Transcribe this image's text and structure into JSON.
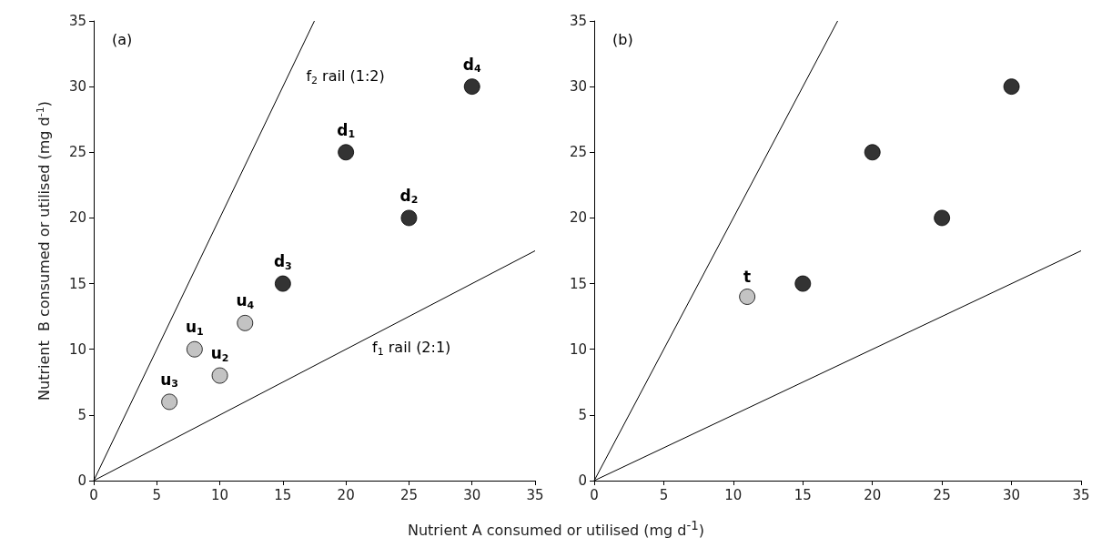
{
  "chart_data": [
    {
      "type": "scatter",
      "ylabel": "Nutrient  B consumed or utilised (mg d$^{-1}$)",
      "xlabel": "Nutrient  A consumed or utilised (mg d$^{-1}$)",
      "xlim": [
        0,
        35
      ],
      "ylim": [
        0,
        35
      ],
      "xticks": [
        0,
        5,
        10,
        15,
        20,
        25,
        30,
        35
      ],
      "yticks": [
        0,
        5,
        10,
        15,
        20,
        25,
        30,
        35
      ],
      "grid": false,
      "marker": "circle",
      "series": [
        {
          "type": "line",
          "name": "f$_{2}$ rail (1:2)",
          "color": "#000000",
          "x": [
            0,
            17.5
          ],
          "values": [
            0,
            35
          ],
          "marker": "none"
        },
        {
          "type": "line",
          "name": "f$_{1}$ rail (2:1)",
          "color": "#000000",
          "x": [
            0,
            35
          ],
          "values": [
            0,
            17.5
          ],
          "marker": "none"
        },
        {
          "color": "#b4b4b4",
          "x": [
            8,
            10,
            6,
            12
          ],
          "values": [
            10,
            8,
            6,
            12
          ]
        },
        {
          "color": "#000000",
          "x": [
            20,
            25,
            15,
            30
          ],
          "values": [
            25,
            20,
            15,
            30
          ]
        }
      ],
      "annotations": [
        "(a)",
        {
          "text": "u$_{1}$",
          "x": 8,
          "y": 10
        },
        {
          "text": "u$_{2}$",
          "x": 10,
          "y": 8
        },
        {
          "text": "u$_{3}$",
          "x": 6,
          "y": 6
        },
        {
          "text": "u$_{4}$",
          "x": 12,
          "y": 12
        },
        {
          "text": "d$_{1}$",
          "x": 20,
          "y": 25
        },
        {
          "text": "d$_{2}$",
          "x": 25,
          "y": 20
        },
        {
          "text": "d$_{3}$",
          "x": 15,
          "y": 15
        },
        {
          "text": "d$_{4}$",
          "x": 30,
          "y": 30
        }
      ]
    },
    {
      "type": "scatter",
      "xlim": [
        0,
        35
      ],
      "ylim": [
        0,
        35
      ],
      "xticks": [
        0,
        5,
        10,
        15,
        20,
        25,
        30,
        35
      ],
      "yticks": [
        0,
        5,
        10,
        15,
        20,
        25,
        30,
        35
      ],
      "grid": false,
      "marker": "circle",
      "series": [
        {
          "type": "line",
          "color": "#000000",
          "x": [
            0,
            17.5
          ],
          "values": [
            0,
            35
          ],
          "marker": "none"
        },
        {
          "type": "line",
          "color": "#000000",
          "x": [
            0,
            35
          ],
          "values": [
            0,
            17.5
          ],
          "marker": "none"
        },
        {
          "color": "#b4b4b4",
          "x": [
            11
          ],
          "values": [
            14
          ]
        },
        {
          "color": "#000000",
          "x": [
            15,
            20,
            25,
            30
          ],
          "values": [
            15,
            25,
            20,
            30
          ]
        }
      ],
      "annotations": [
        "(b)",
        {
          "text": "t",
          "x": 11,
          "y": 14
        }
      ]
    }
  ]
}
